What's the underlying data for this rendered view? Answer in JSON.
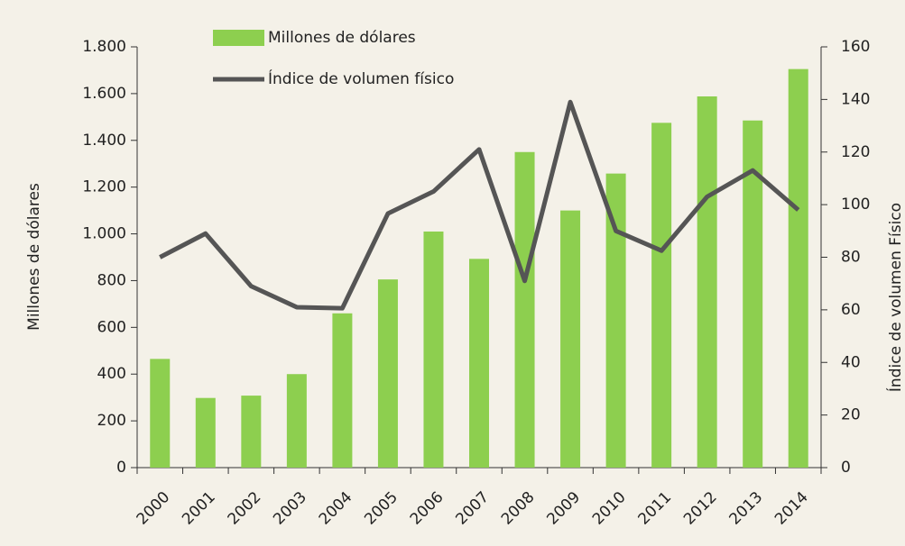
{
  "chart_data": {
    "type": "bar_line",
    "categories": [
      "2000",
      "2001",
      "2002",
      "2003",
      "2004",
      "2005",
      "2006",
      "2007",
      "2008",
      "2009",
      "2010",
      "2011",
      "2012",
      "2013",
      "2014"
    ],
    "series": [
      {
        "name": "Millones de dólares",
        "type": "bar",
        "color": "#8dcf4f",
        "axis": "y",
        "values": [
          465,
          298,
          308,
          400,
          660,
          805,
          1010,
          893,
          1350,
          1100,
          1258,
          1475,
          1588,
          1485,
          1705
        ]
      },
      {
        "name": "Índice de volumen físico",
        "type": "line",
        "color": "#555555",
        "axis": "y2",
        "values": [
          80,
          89,
          69,
          61,
          60.6,
          96.6,
          105,
          121,
          71,
          139,
          90,
          82.5,
          103,
          113,
          98
        ]
      }
    ],
    "ylabel": "Millones de dólares",
    "y2label": "Índice de volumen Físico",
    "ylim": [
      0,
      1800
    ],
    "yticks": [
      0,
      200,
      400,
      600,
      800,
      {
        "value": 1000,
        "label": "1.000"
      },
      {
        "value": 1200,
        "label": "1.200"
      },
      {
        "value": 1400,
        "label": "1.400"
      },
      {
        "value": 1600,
        "label": "1.600"
      },
      {
        "value": 1800,
        "label": "1.800"
      }
    ],
    "y2lim": [
      0,
      160
    ],
    "y2ticks": [
      0,
      20,
      40,
      60,
      80,
      100,
      120,
      140,
      160
    ],
    "legend": "top",
    "background": "#f4f1e8"
  }
}
